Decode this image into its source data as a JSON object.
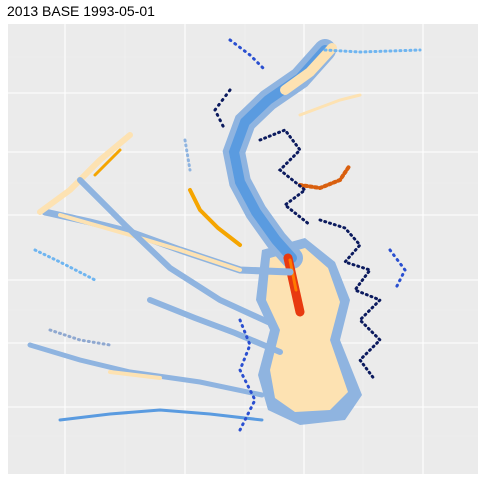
{
  "header": {
    "title": "2013 BASE 1993-05-01"
  }
}
